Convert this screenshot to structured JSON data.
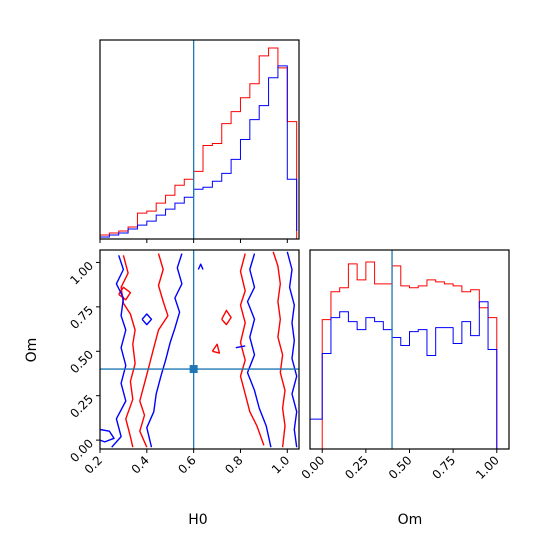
{
  "colors": {
    "red": "#ff0000",
    "blue": "#0000ff",
    "truth": "#1f77b4",
    "axis": "#000000"
  },
  "chart_data": [
    {
      "type": "histogram",
      "panel": "top-left",
      "parameter": "H0",
      "xlim": [
        0.2,
        1.05
      ],
      "show_y_ticks": false,
      "show_x_ticklabels": false,
      "truth": 0.6,
      "bin_edges": [
        0.2,
        0.24,
        0.28,
        0.32,
        0.36,
        0.4,
        0.44,
        0.48,
        0.52,
        0.56,
        0.6,
        0.64,
        0.68,
        0.72,
        0.76,
        0.8,
        0.84,
        0.88,
        0.92,
        0.96,
        1.0,
        1.04
      ],
      "series": [
        {
          "color": "red",
          "counts": [
            2,
            3,
            4,
            6,
            13,
            14,
            18,
            22,
            27,
            30,
            34,
            47,
            48,
            58,
            64,
            71,
            78,
            92,
            96,
            86,
            59,
            0
          ]
        },
        {
          "color": "blue",
          "counts": [
            1,
            2,
            3,
            5,
            7,
            9,
            12,
            15,
            18,
            21,
            25,
            26,
            29,
            33,
            40,
            50,
            60,
            67,
            81,
            87,
            30,
            4
          ]
        }
      ],
      "ymax": 100
    },
    {
      "type": "contour",
      "panel": "bottom-left",
      "xlabel": "H0",
      "ylabel": "Om",
      "xlim": [
        0.2,
        1.05
      ],
      "ylim": [
        -0.05,
        1.07
      ],
      "xticks": [
        "0.2",
        "0.4",
        "0.6",
        "0.8",
        "1.0"
      ],
      "yticks": [
        "0.00",
        "0.25",
        "0.50",
        "0.75",
        "1.00"
      ],
      "truth": {
        "x": 0.6,
        "y": 0.4
      },
      "series": [
        {
          "color": "red",
          "contours": [
            [
              [
                0.45,
                1.05
              ],
              [
                0.47,
                0.96
              ],
              [
                0.45,
                0.87
              ],
              [
                0.47,
                0.78
              ],
              [
                0.49,
                0.7
              ],
              [
                0.45,
                0.62
              ],
              [
                0.43,
                0.52
              ],
              [
                0.41,
                0.42
              ],
              [
                0.39,
                0.32
              ],
              [
                0.37,
                0.22
              ],
              [
                0.39,
                0.14
              ],
              [
                0.37,
                0.05
              ],
              [
                0.4,
                -0.04
              ]
            ],
            [
              [
                0.3,
                1.04
              ],
              [
                0.32,
                0.94
              ],
              [
                0.29,
                0.86
              ],
              [
                0.3,
                0.77
              ],
              [
                0.33,
                0.71
              ],
              [
                0.35,
                0.62
              ],
              [
                0.34,
                0.54
              ],
              [
                0.35,
                0.43
              ],
              [
                0.33,
                0.33
              ],
              [
                0.34,
                0.23
              ],
              [
                0.31,
                0.12
              ],
              [
                0.33,
                0.02
              ],
              [
                0.34,
                -0.04
              ]
            ],
            [
              [
                0.82,
                1.05
              ],
              [
                0.8,
                0.95
              ],
              [
                0.82,
                0.84
              ],
              [
                0.8,
                0.76
              ],
              [
                0.82,
                0.66
              ],
              [
                0.8,
                0.55
              ],
              [
                0.82,
                0.45
              ],
              [
                0.8,
                0.36
              ],
              [
                0.82,
                0.26
              ],
              [
                0.84,
                0.16
              ],
              [
                0.87,
                0.08
              ],
              [
                0.9,
                -0.03
              ]
            ],
            [
              [
                0.94,
                1.06
              ],
              [
                0.96,
                0.98
              ],
              [
                0.97,
                0.88
              ],
              [
                0.96,
                0.78
              ],
              [
                0.97,
                0.68
              ],
              [
                0.96,
                0.58
              ],
              [
                0.98,
                0.48
              ],
              [
                0.97,
                0.38
              ],
              [
                0.99,
                0.28
              ],
              [
                0.98,
                0.18
              ],
              [
                0.99,
                0.08
              ],
              [
                0.98,
                -0.04
              ]
            ],
            [
              [
                0.28,
                0.82
              ],
              [
                0.3,
                0.86
              ],
              [
                0.33,
                0.83
              ],
              [
                0.31,
                0.79
              ],
              [
                0.28,
                0.82
              ]
            ],
            [
              [
                0.72,
                0.68
              ],
              [
                0.74,
                0.73
              ],
              [
                0.76,
                0.69
              ],
              [
                0.74,
                0.65
              ],
              [
                0.72,
                0.68
              ]
            ],
            [
              [
                0.68,
                0.5
              ],
              [
                0.7,
                0.54
              ],
              [
                0.71,
                0.49
              ],
              [
                0.68,
                0.5
              ]
            ]
          ]
        },
        {
          "color": "blue",
          "contours": [
            [
              [
                0.55,
                1.05
              ],
              [
                0.53,
                0.97
              ],
              [
                0.55,
                0.88
              ],
              [
                0.52,
                0.8
              ],
              [
                0.54,
                0.72
              ],
              [
                0.52,
                0.63
              ],
              [
                0.5,
                0.55
              ],
              [
                0.48,
                0.45
              ],
              [
                0.46,
                0.36
              ],
              [
                0.44,
                0.26
              ],
              [
                0.43,
                0.16
              ],
              [
                0.4,
                0.07
              ],
              [
                0.42,
                -0.04
              ]
            ],
            [
              [
                0.28,
                1.04
              ],
              [
                0.3,
                0.96
              ],
              [
                0.27,
                0.88
              ],
              [
                0.3,
                0.8
              ],
              [
                0.29,
                0.7
              ],
              [
                0.31,
                0.62
              ],
              [
                0.29,
                0.52
              ],
              [
                0.31,
                0.42
              ],
              [
                0.29,
                0.32
              ],
              [
                0.31,
                0.22
              ],
              [
                0.27,
                0.12
              ],
              [
                0.29,
                0.02
              ],
              [
                0.25,
                -0.04
              ]
            ],
            [
              [
                0.86,
                1.05
              ],
              [
                0.84,
                0.96
              ],
              [
                0.86,
                0.86
              ],
              [
                0.83,
                0.78
              ],
              [
                0.86,
                0.68
              ],
              [
                0.84,
                0.58
              ],
              [
                0.86,
                0.48
              ],
              [
                0.83,
                0.38
              ],
              [
                0.86,
                0.28
              ],
              [
                0.88,
                0.18
              ],
              [
                0.91,
                0.08
              ],
              [
                0.93,
                -0.04
              ]
            ],
            [
              [
                1.0,
                1.06
              ],
              [
                1.02,
                0.96
              ],
              [
                1.01,
                0.86
              ],
              [
                1.03,
                0.76
              ],
              [
                1.02,
                0.66
              ],
              [
                1.03,
                0.56
              ],
              [
                1.02,
                0.46
              ],
              [
                1.04,
                0.36
              ],
              [
                1.02,
                0.26
              ],
              [
                1.04,
                0.16
              ],
              [
                1.03,
                0.06
              ],
              [
                1.04,
                -0.04
              ]
            ],
            [
              [
                0.2,
                0.06
              ],
              [
                0.24,
                0.05
              ],
              [
                0.26,
                0.01
              ],
              [
                0.22,
                -0.01
              ],
              [
                0.2,
                0.0
              ]
            ],
            [
              [
                0.62,
                0.96
              ],
              [
                0.63,
                0.99
              ],
              [
                0.64,
                0.96
              ]
            ],
            [
              [
                0.38,
                0.68
              ],
              [
                0.4,
                0.71
              ],
              [
                0.42,
                0.68
              ],
              [
                0.4,
                0.65
              ],
              [
                0.38,
                0.68
              ]
            ],
            [
              [
                0.78,
                0.52
              ],
              [
                0.82,
                0.53
              ]
            ]
          ]
        }
      ]
    },
    {
      "type": "histogram",
      "panel": "bottom-right",
      "parameter": "Om",
      "xlabel": "Om",
      "xlim": [
        -0.07,
        1.07
      ],
      "xticks": [
        "0.00",
        "0.25",
        "0.50",
        "0.75",
        "1.00"
      ],
      "show_y_ticks": false,
      "truth": 0.4,
      "bin_edges": [
        -0.07,
        -0.0,
        0.05,
        0.1,
        0.15,
        0.2,
        0.25,
        0.3,
        0.35,
        0.4,
        0.45,
        0.5,
        0.55,
        0.6,
        0.65,
        0.7,
        0.75,
        0.8,
        0.85,
        0.9,
        0.95,
        1.0,
        1.07
      ],
      "series": [
        {
          "color": "red",
          "counts": [
            0,
            65,
            79,
            81,
            93,
            85,
            94,
            83,
            83,
            92,
            82,
            81,
            82,
            85,
            84,
            83,
            82,
            79,
            80,
            71,
            66,
            0
          ]
        },
        {
          "color": "blue",
          "counts": [
            15,
            48,
            66,
            69,
            64,
            60,
            66,
            64,
            60,
            56,
            52,
            59,
            60,
            47,
            61,
            61,
            53,
            64,
            57,
            74,
            50,
            0
          ]
        }
      ],
      "ymax": 100
    }
  ]
}
